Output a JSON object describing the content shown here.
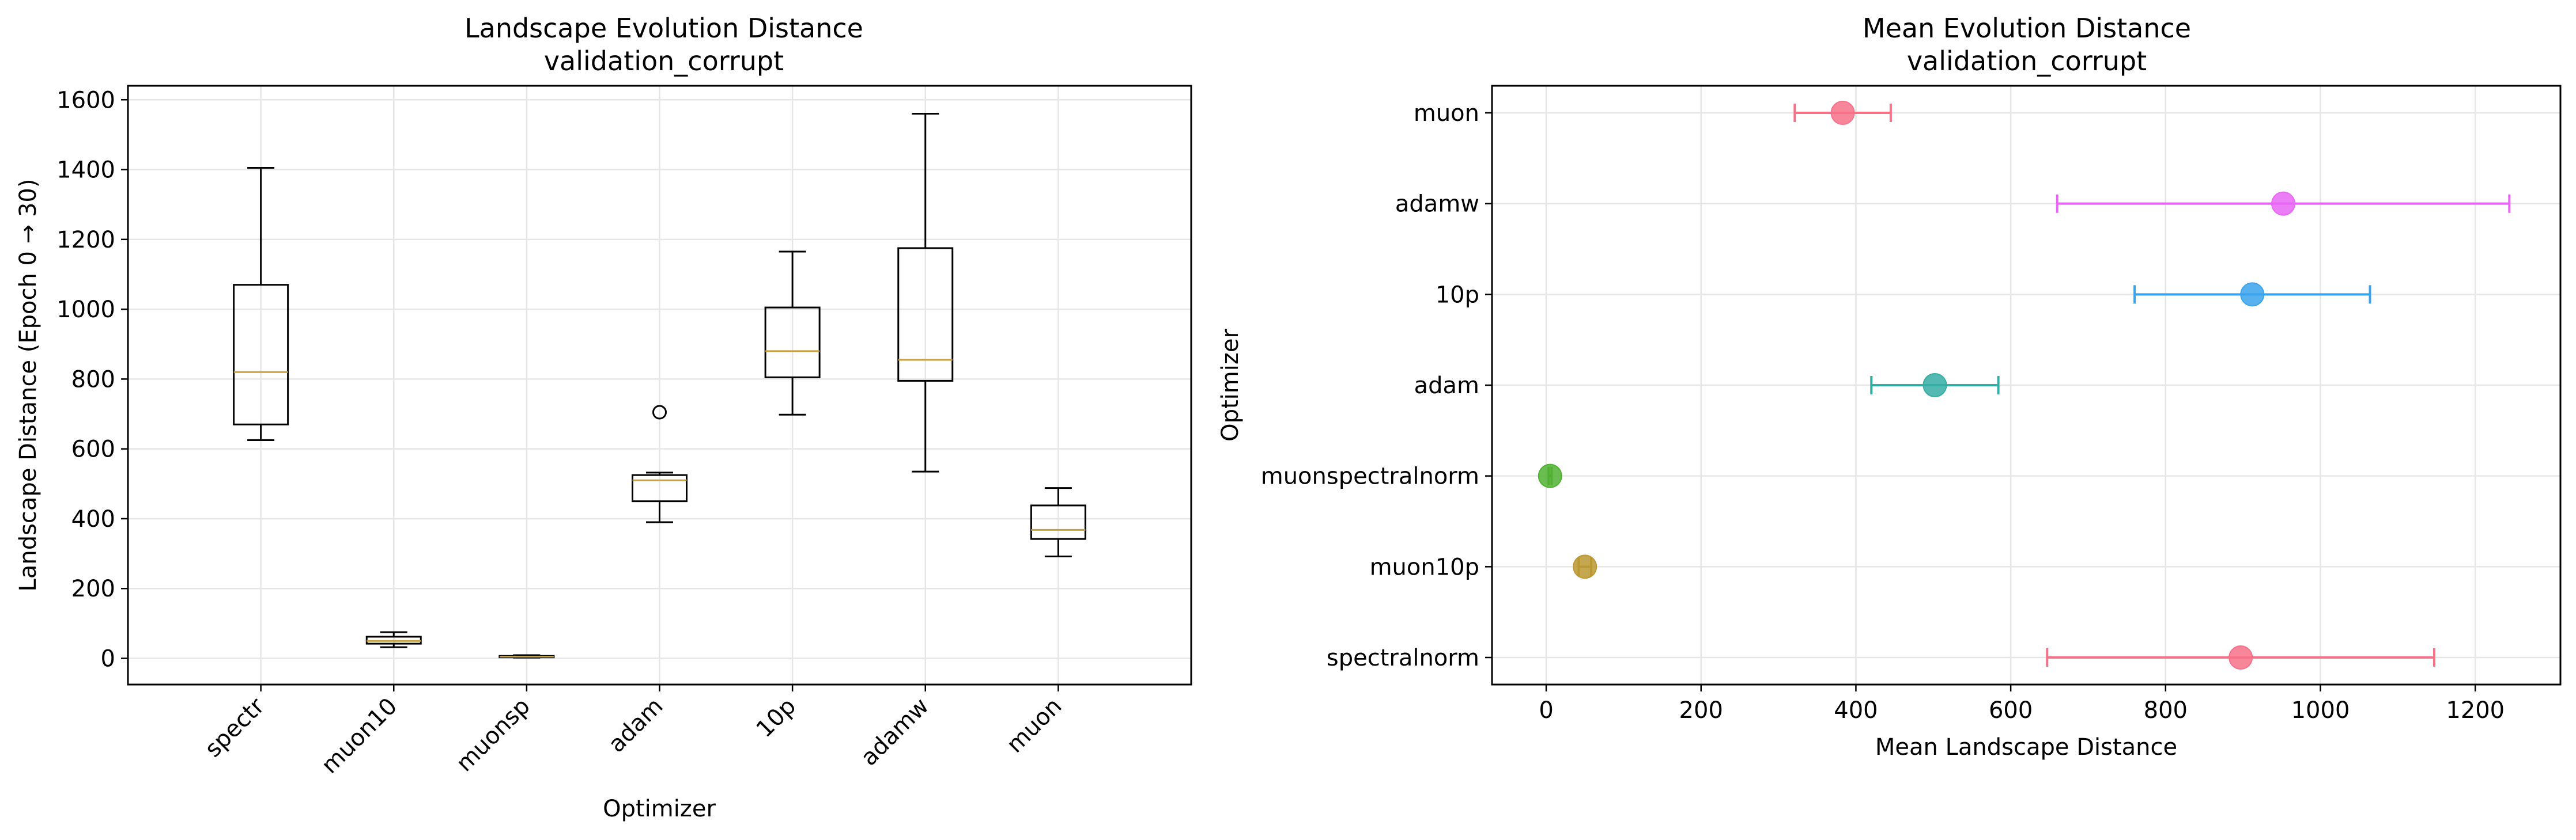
{
  "chart_data": [
    {
      "type": "box",
      "title_line1": "Landscape Evolution Distance",
      "title_line2": "validation_corrupt",
      "xlabel": "Optimizer",
      "ylabel": "Landscape Distance (Epoch 0 → 30)",
      "ylim": [
        -75,
        1640
      ],
      "yticks": [
        0,
        200,
        400,
        600,
        800,
        1000,
        1200,
        1400,
        1600
      ],
      "grid": true,
      "categories": [
        "spectr",
        "muon10",
        "muonsp",
        "adam",
        "10p",
        "adamw",
        "muon"
      ],
      "boxes": [
        {
          "whisker_low": 625,
          "q1": 670,
          "median": 820,
          "q3": 1070,
          "whisker_high": 1405,
          "outliers": []
        },
        {
          "whisker_low": 32,
          "q1": 42,
          "median": 50,
          "q3": 62,
          "whisker_high": 75,
          "outliers": []
        },
        {
          "whisker_low": 2,
          "q1": 3,
          "median": 5,
          "q3": 7,
          "whisker_high": 9,
          "outliers": []
        },
        {
          "whisker_low": 390,
          "q1": 450,
          "median": 510,
          "q3": 525,
          "whisker_high": 532,
          "outliers": [
            705
          ]
        },
        {
          "whisker_low": 698,
          "q1": 805,
          "median": 880,
          "q3": 1005,
          "whisker_high": 1165,
          "outliers": []
        },
        {
          "whisker_low": 535,
          "q1": 795,
          "median": 855,
          "q3": 1175,
          "whisker_high": 1560,
          "outliers": []
        },
        {
          "whisker_low": 292,
          "q1": 342,
          "median": 368,
          "q3": 438,
          "whisker_high": 488,
          "outliers": []
        }
      ],
      "median_color": "#c8a03c"
    },
    {
      "type": "errorbar",
      "title_line1": "Mean Evolution Distance",
      "title_line2": "validation_corrupt",
      "xlabel": "Mean Landscape Distance",
      "ylabel": "Optimizer",
      "xlim": [
        -70,
        1310
      ],
      "xticks": [
        0,
        200,
        400,
        600,
        800,
        1000,
        1200
      ],
      "grid": true,
      "points": [
        {
          "label": "spectralnorm",
          "mean": 897,
          "err": 250,
          "color": "#f77189"
        },
        {
          "label": "muon10p",
          "mean": 50,
          "err": 8,
          "color": "#bb9832"
        },
        {
          "label": "muonspectralnorm",
          "mean": 5,
          "err": 2,
          "color": "#50b131"
        },
        {
          "label": "adam",
          "mean": 502,
          "err": 82,
          "color": "#36ada4"
        },
        {
          "label": "10p",
          "mean": 912,
          "err": 152,
          "color": "#3ba3ec"
        },
        {
          "label": "adamw",
          "mean": 952,
          "err": 292,
          "color": "#e866f4"
        },
        {
          "label": "muon",
          "mean": 383,
          "err": 62,
          "color": "#f77189"
        }
      ]
    }
  ]
}
